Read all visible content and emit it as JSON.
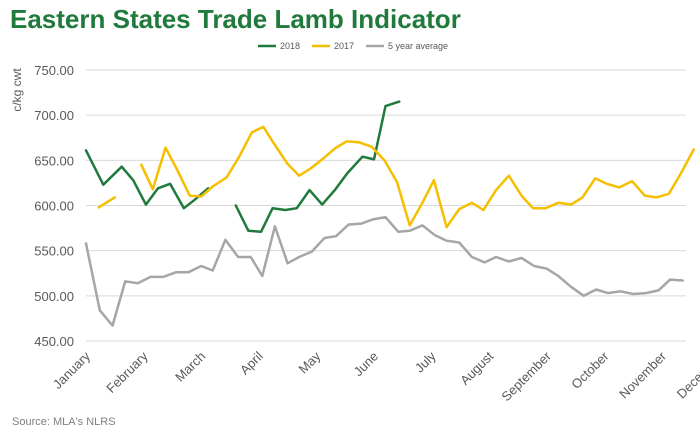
{
  "title": "Eastern States Trade Lamb Indicator",
  "source": "Source: MLA's NLRS",
  "chart_data": {
    "type": "line",
    "ylabel": "c/kg cwt",
    "xlabel": "",
    "ylim": [
      450,
      750
    ],
    "yticks": [
      "450.00",
      "500.00",
      "550.00",
      "600.00",
      "650.00",
      "700.00",
      "750.00"
    ],
    "ytick_values": [
      450,
      500,
      550,
      600,
      650,
      700,
      750
    ],
    "categories": [
      "January",
      "February",
      "March",
      "April",
      "May",
      "June",
      "July",
      "August",
      "September",
      "October",
      "November",
      "December"
    ],
    "grid": true,
    "legend_position": "top-center",
    "series": [
      {
        "name": "2018",
        "color": "#1f7a3c",
        "points": [
          [
            0.0,
            661
          ],
          [
            0.3,
            623
          ],
          [
            0.62,
            643
          ],
          [
            0.82,
            628
          ],
          [
            1.04,
            601
          ],
          [
            1.25,
            619
          ],
          [
            1.46,
            624
          ],
          [
            1.7,
            597
          ],
          [
            1.9,
            607
          ],
          [
            2.12,
            619
          ],
          null,
          [
            2.6,
            600
          ],
          [
            2.82,
            572
          ],
          [
            3.04,
            571
          ],
          [
            3.24,
            597
          ],
          [
            3.46,
            595
          ],
          [
            3.66,
            597
          ],
          [
            3.88,
            617
          ],
          [
            4.1,
            601
          ],
          [
            4.32,
            617
          ],
          [
            4.54,
            636
          ],
          [
            4.8,
            654
          ],
          [
            5.0,
            651
          ],
          [
            5.2,
            710
          ],
          [
            5.44,
            715
          ]
        ]
      },
      {
        "name": "2017",
        "color": "#f5bf00",
        "points": [
          [
            0.22,
            598
          ],
          [
            0.5,
            609
          ],
          null,
          [
            0.96,
            645
          ],
          [
            1.16,
            618
          ],
          [
            1.38,
            664
          ],
          [
            1.58,
            640
          ],
          [
            1.8,
            611
          ],
          [
            2.0,
            610
          ],
          [
            2.2,
            621
          ],
          [
            2.44,
            631
          ],
          [
            2.66,
            654
          ],
          [
            2.88,
            681
          ],
          [
            3.08,
            687
          ],
          [
            3.28,
            667
          ],
          [
            3.5,
            646
          ],
          [
            3.7,
            633
          ],
          [
            3.9,
            641
          ],
          [
            4.1,
            651
          ],
          [
            4.32,
            663
          ],
          [
            4.52,
            671
          ],
          [
            4.74,
            670
          ],
          [
            4.96,
            665
          ],
          [
            5.18,
            650
          ],
          [
            5.4,
            626
          ],
          [
            5.62,
            578
          ],
          [
            5.84,
            603
          ],
          [
            6.04,
            628
          ],
          [
            6.26,
            576
          ],
          [
            6.48,
            596
          ],
          [
            6.7,
            603
          ],
          [
            6.9,
            595
          ],
          [
            7.12,
            617
          ],
          [
            7.34,
            633
          ],
          [
            7.56,
            611
          ],
          [
            7.76,
            597
          ],
          [
            7.98,
            597
          ],
          [
            8.2,
            603
          ],
          [
            8.42,
            601
          ],
          [
            8.62,
            609
          ],
          [
            8.84,
            630
          ],
          [
            9.04,
            624
          ],
          [
            9.26,
            620
          ],
          [
            9.48,
            627
          ],
          [
            9.7,
            611
          ],
          [
            9.9,
            609
          ],
          [
            10.12,
            613
          ],
          [
            10.34,
            637
          ],
          [
            10.55,
            662
          ]
        ]
      },
      {
        "name": "5 year average",
        "color": "#a6a6a6",
        "points": [
          [
            0.0,
            558
          ],
          [
            0.24,
            484
          ],
          [
            0.46,
            467
          ],
          [
            0.68,
            516
          ],
          [
            0.9,
            514
          ],
          [
            1.12,
            521
          ],
          [
            1.34,
            521
          ],
          [
            1.56,
            526
          ],
          [
            1.78,
            526
          ],
          [
            2.0,
            533
          ],
          [
            2.2,
            528
          ],
          [
            2.42,
            562
          ],
          [
            2.64,
            543
          ],
          [
            2.86,
            543
          ],
          [
            3.06,
            522
          ],
          [
            3.28,
            577
          ],
          [
            3.5,
            536
          ],
          [
            3.7,
            543
          ],
          [
            3.92,
            549
          ],
          [
            4.14,
            564
          ],
          [
            4.34,
            566
          ],
          [
            4.56,
            579
          ],
          [
            4.78,
            580
          ],
          [
            5.0,
            585
          ],
          [
            5.2,
            587
          ],
          [
            5.42,
            571
          ],
          [
            5.62,
            572
          ],
          [
            5.84,
            578
          ],
          [
            6.06,
            567
          ],
          [
            6.26,
            561
          ],
          [
            6.48,
            559
          ],
          [
            6.7,
            543
          ],
          [
            6.92,
            537
          ],
          [
            7.12,
            543
          ],
          [
            7.34,
            538
          ],
          [
            7.56,
            542
          ],
          [
            7.78,
            533
          ],
          [
            8.0,
            530
          ],
          [
            8.2,
            522
          ],
          [
            8.42,
            510
          ],
          [
            8.64,
            500
          ],
          [
            8.86,
            507
          ],
          [
            9.06,
            503
          ],
          [
            9.28,
            505
          ],
          [
            9.5,
            502
          ],
          [
            9.72,
            503
          ],
          [
            9.94,
            506
          ],
          [
            10.14,
            518
          ],
          [
            10.36,
            517
          ]
        ]
      }
    ]
  }
}
